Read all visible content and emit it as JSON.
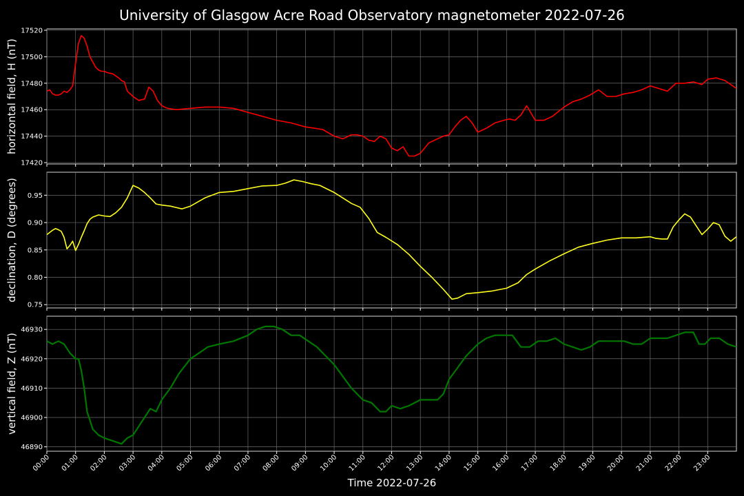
{
  "chart_data": {
    "type": "line",
    "title": "University of Glasgow Acre Road Observatory magnetometer 2022-07-26",
    "xlabel": "Time 2022-07-26",
    "x_tick_labels": [
      "00:00",
      "01:00",
      "02:00",
      "03:00",
      "04:00",
      "05:00",
      "06:00",
      "07:00",
      "08:00",
      "09:00",
      "10:00",
      "11:00",
      "12:00",
      "13:00",
      "14:00",
      "15:00",
      "16:00",
      "17:00",
      "18:00",
      "19:00",
      "20:00",
      "21:00",
      "22:00",
      "23:00"
    ],
    "xlim_hours": [
      0,
      24
    ],
    "grid": true,
    "background": "#000000",
    "panels": [
      {
        "ylabel": "horizontal field, H (nT)",
        "color": "#ff0000",
        "ylim": [
          17419,
          17521
        ],
        "yticks": [
          17420,
          17440,
          17460,
          17480,
          17500,
          17520
        ],
        "tick_decimals": 0,
        "time_hours": [
          0,
          0.1,
          0.2,
          0.3,
          0.4,
          0.5,
          0.6,
          0.7,
          0.8,
          0.9,
          1.0,
          1.1,
          1.2,
          1.3,
          1.4,
          1.5,
          1.6,
          1.7,
          1.8,
          1.9,
          2.0,
          2.1,
          2.3,
          2.5,
          2.6,
          2.7,
          2.8,
          3.0,
          3.2,
          3.4,
          3.55,
          3.7,
          3.85,
          4.0,
          4.2,
          4.5,
          5.0,
          5.5,
          6.0,
          6.5,
          7.0,
          7.5,
          8.0,
          8.5,
          9.0,
          9.3,
          9.6,
          10.0,
          10.3,
          10.6,
          10.8,
          11.0,
          11.2,
          11.4,
          11.6,
          11.8,
          12.0,
          12.2,
          12.4,
          12.6,
          12.8,
          13.0,
          13.3,
          13.6,
          13.8,
          14.0,
          14.2,
          14.4,
          14.6,
          14.8,
          15.0,
          15.3,
          15.6,
          15.9,
          16.1,
          16.3,
          16.5,
          16.7,
          17.0,
          17.3,
          17.6,
          18.0,
          18.3,
          18.6,
          18.9,
          19.2,
          19.5,
          19.8,
          20.1,
          20.4,
          20.7,
          21.0,
          21.3,
          21.6,
          21.9,
          22.2,
          22.5,
          22.8,
          23.0,
          23.3,
          23.6,
          24.0
        ],
        "values": [
          17474,
          17475,
          17472,
          17471,
          17471,
          17472,
          17474,
          17473,
          17475,
          17478,
          17495,
          17510,
          17516,
          17514,
          17508,
          17500,
          17496,
          17492,
          17490,
          17489,
          17489,
          17488,
          17487,
          17484,
          17482,
          17481,
          17474,
          17470,
          17467,
          17468,
          17477,
          17474,
          17467,
          17463,
          17461,
          17460,
          17461,
          17462,
          17462,
          17461,
          17458,
          17455,
          17452,
          17450,
          17447,
          17446,
          17445,
          17440,
          17438,
          17441,
          17441,
          17440,
          17437,
          17436,
          17440,
          17438,
          17431,
          17429,
          17432,
          17425,
          17425,
          17427,
          17435,
          17438,
          17440,
          17441,
          17447,
          17452,
          17455,
          17450,
          17443,
          17446,
          17450,
          17452,
          17453,
          17452,
          17456,
          17463,
          17452,
          17452,
          17455,
          17462,
          17466,
          17468,
          17471,
          17475,
          17470,
          17470,
          17472,
          17473,
          17475,
          17478,
          17476,
          17474,
          17480,
          17480,
          17481,
          17479,
          17483,
          17484,
          17482,
          17476,
          17472,
          17474,
          17475,
          17474,
          17473
        ]
      },
      {
        "ylabel": "declination, D (degrees)",
        "color": "#ffff1e",
        "ylim": [
          0.744,
          0.992
        ],
        "yticks": [
          0.75,
          0.8,
          0.85,
          0.9,
          0.95
        ],
        "tick_decimals": 2,
        "time_hours": [
          0,
          0.1,
          0.2,
          0.3,
          0.4,
          0.5,
          0.6,
          0.7,
          0.8,
          0.9,
          1.0,
          1.1,
          1.2,
          1.3,
          1.4,
          1.5,
          1.6,
          1.8,
          2.0,
          2.2,
          2.4,
          2.6,
          2.8,
          3.0,
          3.2,
          3.4,
          3.6,
          3.8,
          4.0,
          4.3,
          4.7,
          5.0,
          5.5,
          6.0,
          6.5,
          7.0,
          7.5,
          8.0,
          8.3,
          8.6,
          8.9,
          9.2,
          9.5,
          10.0,
          10.3,
          10.6,
          10.9,
          11.2,
          11.5,
          11.8,
          12.2,
          12.6,
          13.0,
          13.4,
          13.8,
          14.1,
          14.3,
          14.6,
          15.0,
          15.5,
          16.0,
          16.4,
          16.7,
          17.0,
          17.5,
          18.0,
          18.5,
          19.0,
          19.5,
          20.0,
          20.5,
          21.0,
          21.2,
          21.4,
          21.6,
          21.8,
          22.0,
          22.2,
          22.4,
          22.6,
          22.8,
          23.0,
          23.2,
          23.4,
          23.6,
          23.8,
          24.0
        ],
        "values": [
          0.878,
          0.882,
          0.886,
          0.889,
          0.887,
          0.884,
          0.873,
          0.852,
          0.858,
          0.866,
          0.849,
          0.86,
          0.873,
          0.885,
          0.898,
          0.906,
          0.91,
          0.914,
          0.912,
          0.911,
          0.918,
          0.928,
          0.945,
          0.968,
          0.963,
          0.955,
          0.945,
          0.934,
          0.932,
          0.93,
          0.925,
          0.93,
          0.945,
          0.955,
          0.957,
          0.962,
          0.967,
          0.968,
          0.972,
          0.978,
          0.975,
          0.971,
          0.968,
          0.955,
          0.945,
          0.935,
          0.928,
          0.908,
          0.882,
          0.873,
          0.86,
          0.842,
          0.82,
          0.8,
          0.778,
          0.76,
          0.762,
          0.77,
          0.772,
          0.775,
          0.78,
          0.79,
          0.805,
          0.815,
          0.83,
          0.843,
          0.855,
          0.862,
          0.868,
          0.872,
          0.872,
          0.874,
          0.871,
          0.87,
          0.87,
          0.892,
          0.905,
          0.916,
          0.91,
          0.894,
          0.878,
          0.888,
          0.9,
          0.896,
          0.875,
          0.866,
          0.874
        ]
      },
      {
        "ylabel": "vertical field, Z (nT)",
        "color": "#007800",
        "ylim": [
          46888.5,
          46934.5
        ],
        "yticks": [
          46890,
          46900,
          46910,
          46920,
          46930
        ],
        "tick_decimals": 0,
        "time_hours": [
          0,
          0.2,
          0.4,
          0.6,
          0.8,
          1.0,
          1.1,
          1.2,
          1.3,
          1.4,
          1.6,
          1.8,
          2.0,
          2.3,
          2.6,
          2.8,
          3.0,
          3.2,
          3.4,
          3.6,
          3.8,
          4.0,
          4.3,
          4.6,
          5.0,
          5.3,
          5.6,
          6.0,
          6.5,
          7.0,
          7.3,
          7.6,
          7.9,
          8.2,
          8.5,
          8.8,
          9.1,
          9.4,
          9.7,
          10.0,
          10.3,
          10.6,
          11.0,
          11.3,
          11.6,
          11.8,
          12.0,
          12.3,
          12.6,
          13.0,
          13.3,
          13.6,
          13.8,
          14.0,
          14.3,
          14.6,
          15.0,
          15.3,
          15.6,
          15.9,
          16.2,
          16.5,
          16.8,
          17.1,
          17.4,
          17.7,
          18.0,
          18.3,
          18.6,
          18.9,
          19.2,
          19.5,
          19.8,
          20.1,
          20.4,
          20.7,
          21.0,
          21.3,
          21.6,
          21.9,
          22.2,
          22.5,
          22.7,
          22.9,
          23.1,
          23.4,
          23.7,
          24.0
        ],
        "values": [
          46926,
          46925,
          46926,
          46925,
          46922,
          46920,
          46920,
          46916,
          46910,
          46902,
          46896,
          46894,
          46893,
          46892,
          46891,
          46893,
          46894,
          46897,
          46900,
          46903,
          46902,
          46906,
          46910,
          46915,
          46920,
          46922,
          46924,
          46925,
          46926,
          46928,
          46930,
          46931,
          46931,
          46930,
          46928,
          46928,
          46926,
          46924,
          46921,
          46918,
          46914,
          46910,
          46906,
          46905,
          46902,
          46902,
          46904,
          46903,
          46904,
          46906,
          46906,
          46906,
          46908,
          46913,
          46917,
          46921,
          46925,
          46927,
          46928,
          46928,
          46928,
          46924,
          46924,
          46926,
          46926,
          46927,
          46925,
          46924,
          46923,
          46924,
          46926,
          46926,
          46926,
          46926,
          46925,
          46925,
          46927,
          46927,
          46927,
          46928,
          46929,
          46929,
          46925,
          46925,
          46927,
          46927,
          46925,
          46924
        ]
      }
    ]
  }
}
